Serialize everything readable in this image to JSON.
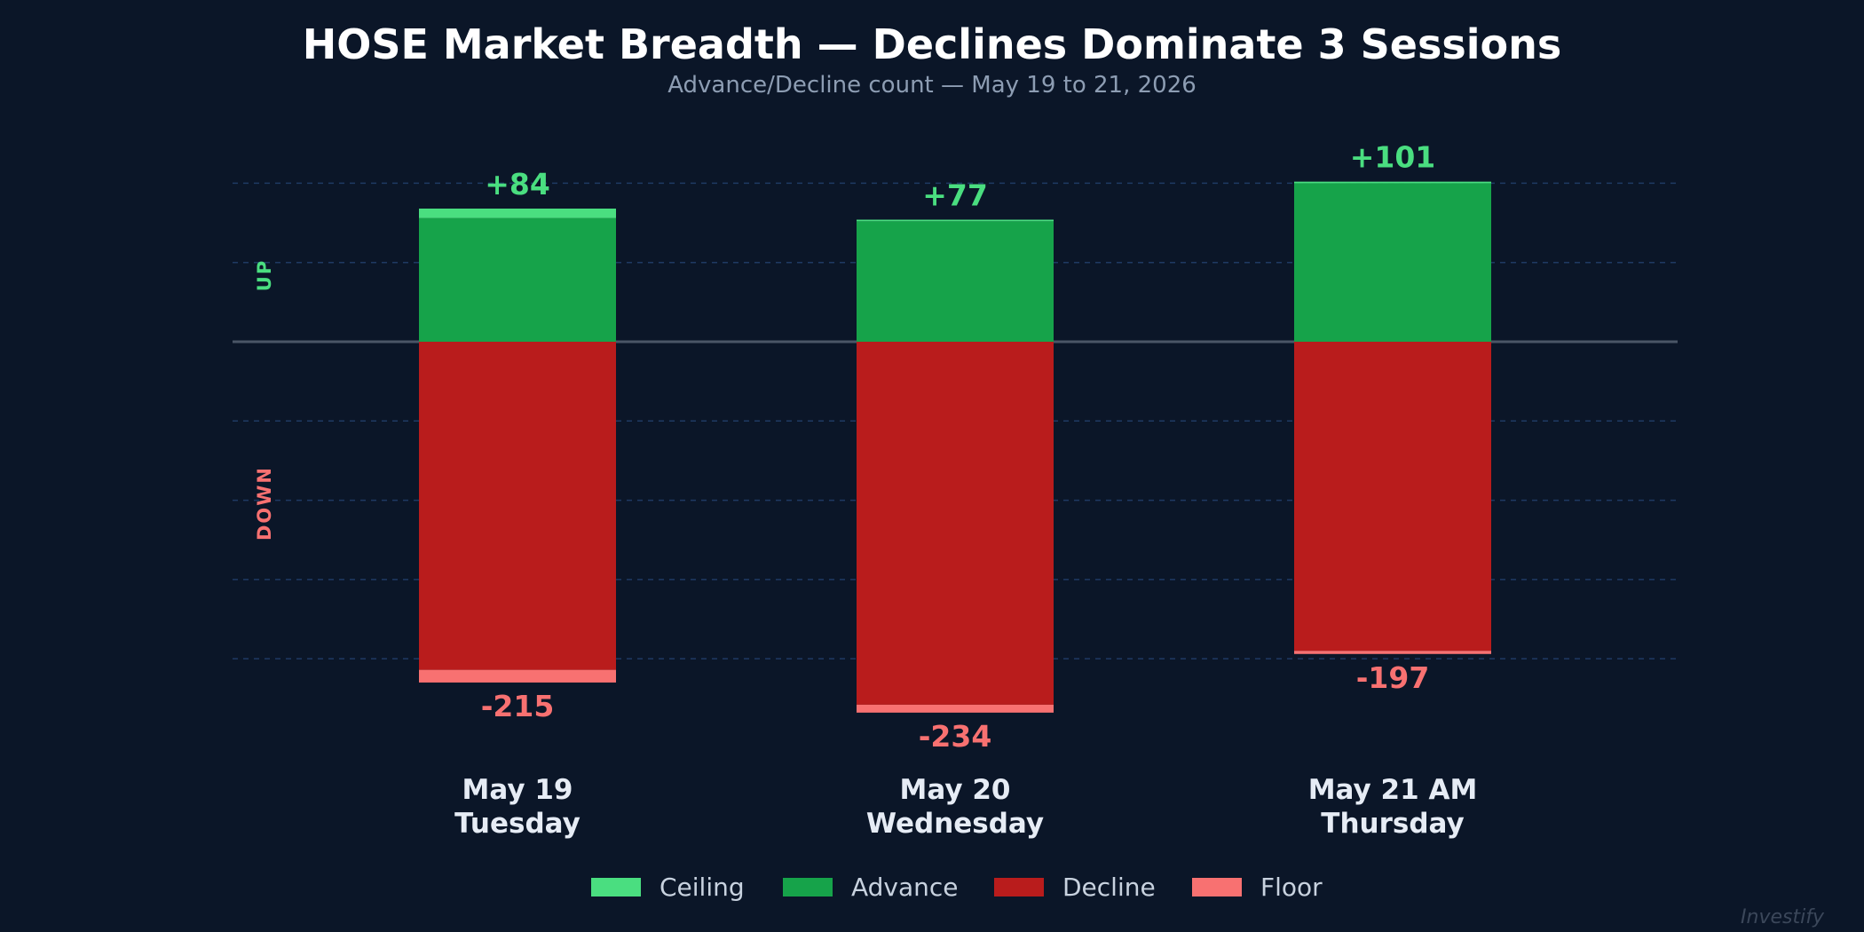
{
  "chart_data": {
    "type": "bar",
    "stacked": true,
    "title": "HOSE Market Breadth — Declines Dominate 3 Sessions",
    "subtitle": "Advance/Decline count — May 19 to 21, 2026",
    "categories": [
      [
        "May 19",
        "Tuesday"
      ],
      [
        "May 20",
        "Wednesday"
      ],
      [
        "May 21 AM",
        "Thursday"
      ]
    ],
    "series": [
      {
        "name": "Ceiling",
        "color": "#4ade80",
        "values": [
          6,
          1,
          1
        ]
      },
      {
        "name": "Advance",
        "color": "#16a34a",
        "values": [
          78,
          76,
          100
        ]
      },
      {
        "name": "Decline",
        "color": "#b91c1c",
        "values": [
          -207,
          -229,
          -195
        ]
      },
      {
        "name": "Floor",
        "color": "#f87171",
        "values": [
          -8,
          -5,
          -2
        ]
      }
    ],
    "totals_up": [
      "+84",
      "+77",
      "+101"
    ],
    "totals_down": [
      "-215",
      "-234",
      "-197"
    ],
    "up_values": [
      84,
      77,
      101
    ],
    "down_values": [
      -215,
      -234,
      -197
    ],
    "ylim": [
      -240,
      110
    ],
    "grid": true,
    "side_labels": {
      "up": "UP",
      "down": "DOWN"
    },
    "legend_position": "bottom",
    "up_color": "#4ade80",
    "down_color": "#f87171"
  },
  "watermark": "Investify"
}
